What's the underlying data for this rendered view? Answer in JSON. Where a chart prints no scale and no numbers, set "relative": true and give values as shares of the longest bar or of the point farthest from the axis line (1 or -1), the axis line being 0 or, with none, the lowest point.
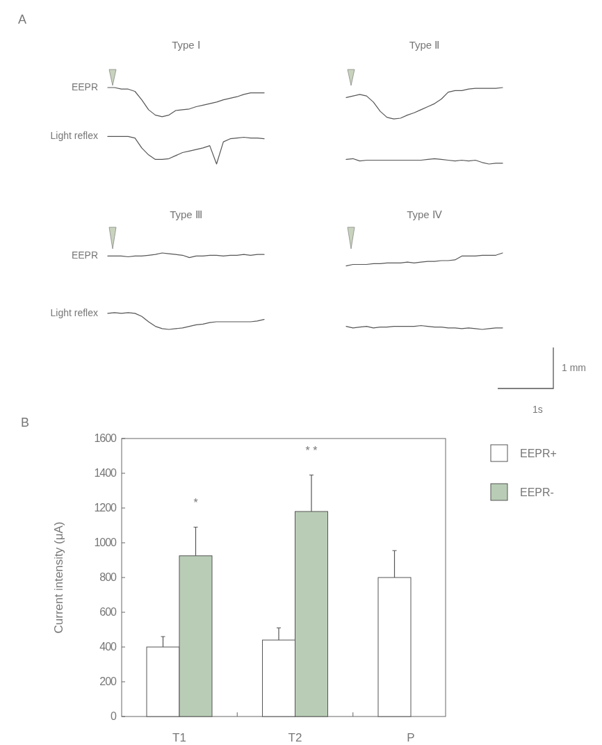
{
  "chart_data": [
    {
      "type": "line",
      "title": "Type Ⅰ",
      "relative": true,
      "annotations": [
        "A"
      ],
      "marker": "none",
      "categories": [
        null,
        null,
        null,
        null,
        null,
        null,
        null,
        null,
        null,
        null,
        null,
        null,
        null,
        null,
        null,
        null,
        null,
        null,
        null,
        null,
        null,
        null,
        null,
        null
      ],
      "series": [
        {
          "name": "EEPR",
          "color": "#555555",
          "values": [
            1.0,
            1.0,
            0.98,
            0.98,
            0.95,
            0.84,
            0.71,
            0.64,
            0.62,
            0.64,
            0.7,
            0.71,
            0.72,
            0.75,
            0.77,
            0.79,
            0.81,
            0.84,
            0.86,
            0.88,
            0.91,
            0.93,
            0.93,
            0.93
          ]
        },
        {
          "name": "Light reflex",
          "color": "#555555",
          "values": [
            0.36,
            0.36,
            0.36,
            0.36,
            0.34,
            0.21,
            0.12,
            0.06,
            0.06,
            0.07,
            0.11,
            0.15,
            0.17,
            0.19,
            0.21,
            0.24,
            0.0,
            0.29,
            0.33,
            0.34,
            0.35,
            0.34,
            0.34,
            0.33
          ]
        }
      ]
    },
    {
      "type": "line",
      "title": "Type Ⅱ",
      "relative": true,
      "marker": "none",
      "categories": [
        null,
        null,
        null,
        null,
        null,
        null,
        null,
        null,
        null,
        null,
        null,
        null,
        null,
        null,
        null,
        null,
        null,
        null,
        null,
        null,
        null,
        null,
        null,
        null
      ],
      "series": [
        {
          "color": "#555555",
          "values": [
            0.87,
            0.89,
            0.91,
            0.89,
            0.81,
            0.69,
            0.61,
            0.59,
            0.6,
            0.64,
            0.67,
            0.71,
            0.75,
            0.79,
            0.85,
            0.94,
            0.96,
            0.96,
            0.98,
            0.99,
            0.99,
            0.99,
            0.99,
            1.0
          ]
        },
        {
          "color": "#555555",
          "values": [
            0.06,
            0.07,
            0.04,
            0.05,
            0.05,
            0.05,
            0.05,
            0.05,
            0.05,
            0.05,
            0.05,
            0.05,
            0.06,
            0.07,
            0.06,
            0.05,
            0.04,
            0.05,
            0.04,
            0.05,
            0.02,
            0.0,
            0.01,
            0.01
          ]
        }
      ]
    },
    {
      "type": "line",
      "title": "Type Ⅲ",
      "relative": true,
      "marker": "none",
      "categories": [
        null,
        null,
        null,
        null,
        null,
        null,
        null,
        null,
        null,
        null,
        null,
        null,
        null,
        null,
        null,
        null,
        null,
        null,
        null,
        null,
        null,
        null,
        null,
        null
      ],
      "series": [
        {
          "name": "EEPR",
          "color": "#555555",
          "values": [
            0.96,
            0.96,
            0.96,
            0.95,
            0.96,
            0.96,
            0.97,
            0.98,
            1.0,
            0.99,
            0.98,
            0.97,
            0.94,
            0.96,
            0.96,
            0.97,
            0.97,
            0.96,
            0.97,
            0.97,
            0.98,
            0.97,
            0.98,
            0.98
          ]
        },
        {
          "name": "Light reflex",
          "color": "#555555",
          "values": [
            0.21,
            0.22,
            0.21,
            0.22,
            0.21,
            0.17,
            0.1,
            0.04,
            0.01,
            0.0,
            0.01,
            0.02,
            0.04,
            0.06,
            0.07,
            0.09,
            0.1,
            0.1,
            0.1,
            0.1,
            0.1,
            0.1,
            0.11,
            0.13
          ]
        }
      ]
    },
    {
      "type": "line",
      "title": "Type Ⅳ",
      "relative": true,
      "annotations": [
        "1 mm",
        "1s"
      ],
      "marker": "none",
      "categories": [
        null,
        null,
        null,
        null,
        null,
        null,
        null,
        null,
        null,
        null,
        null,
        null,
        null,
        null,
        null,
        null,
        null,
        null,
        null,
        null,
        null,
        null,
        null,
        null
      ],
      "series": [
        {
          "color": "#555555",
          "values": [
            0.83,
            0.85,
            0.85,
            0.85,
            0.86,
            0.86,
            0.87,
            0.87,
            0.87,
            0.88,
            0.87,
            0.88,
            0.89,
            0.89,
            0.9,
            0.9,
            0.91,
            0.96,
            0.96,
            0.96,
            0.97,
            0.97,
            0.97,
            1.0
          ]
        },
        {
          "color": "#555555",
          "values": [
            0.04,
            0.02,
            0.03,
            0.04,
            0.02,
            0.03,
            0.03,
            0.04,
            0.04,
            0.04,
            0.04,
            0.05,
            0.04,
            0.03,
            0.03,
            0.02,
            0.02,
            0.01,
            0.02,
            0.01,
            0.0,
            0.01,
            0.02,
            0.02
          ]
        }
      ]
    },
    {
      "type": "bar",
      "ylabel": "Current intensity (μA)",
      "categories": [
        "T1",
        "T2",
        "P"
      ],
      "ylim": [
        0,
        1600
      ],
      "yticks": [
        0,
        200,
        400,
        600,
        800,
        1000,
        1200,
        1400,
        1600
      ],
      "legend": "top right",
      "grid": false,
      "annotations": [
        "B",
        "*",
        "* *"
      ],
      "series": [
        {
          "name": "EEPR+",
          "color": "#ffffff",
          "values": [
            400,
            440,
            800
          ],
          "errors": [
            [
              400,
              460
            ],
            [
              440,
              510
            ],
            [
              800,
              955
            ]
          ]
        },
        {
          "name": "EEPR-",
          "color": "#b9cdb6",
          "values": [
            925,
            1180,
            null
          ],
          "errors": [
            [
              925,
              1090
            ],
            [
              1180,
              1390
            ],
            null
          ]
        }
      ]
    }
  ]
}
